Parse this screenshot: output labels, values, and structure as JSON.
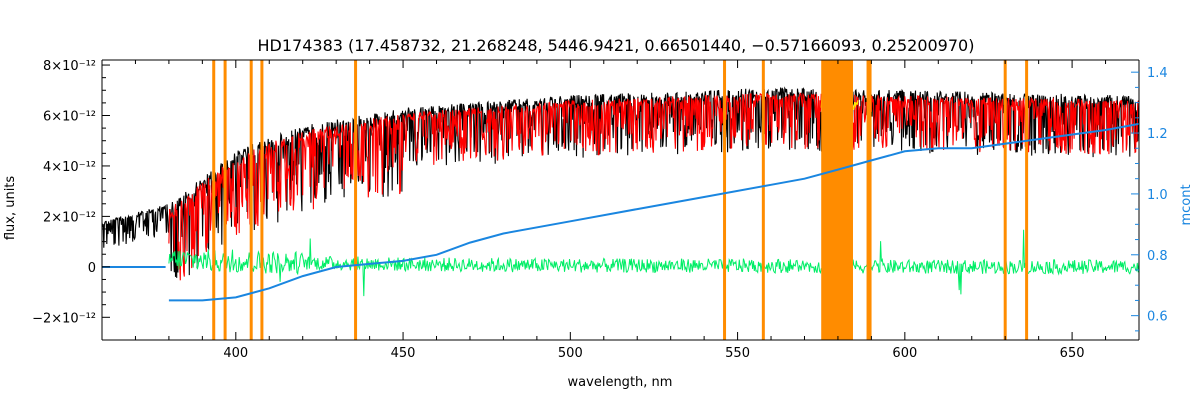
{
  "chart_data": {
    "type": "line",
    "title": "HD174383   (17.458732, 21.268248, 5446.9421, 0.66501440, −0.57166093, 0.25200970)",
    "xlabel": "wavelength, nm",
    "ylabel": "flux, units",
    "ylabel_right": "mcont",
    "xlim": [
      360,
      670
    ],
    "ylim": [
      -2.9e-12,
      8.2e-12
    ],
    "ylim_right": [
      0.52,
      1.44
    ],
    "x_ticks": [
      "400",
      "450",
      "500",
      "550",
      "600",
      "650"
    ],
    "y_ticks": [
      "8×10⁻¹²",
      "6×10⁻¹²",
      "4×10⁻¹²",
      "2×10⁻¹²",
      "0",
      "−2×10⁻¹²"
    ],
    "y_tick_values": [
      8e-12,
      6e-12,
      4e-12,
      2e-12,
      0,
      -2e-12
    ],
    "y_right_ticks": [
      "1.4",
      "1.2",
      "1.0",
      "0.8",
      "0.6"
    ],
    "y_right_tick_values": [
      1.4,
      1.2,
      1.0,
      0.8,
      0.6
    ],
    "x_tick_values": [
      400,
      450,
      500,
      550,
      600,
      650
    ],
    "series": [
      {
        "color": "#000000",
        "x": [
          360,
          380,
          400,
          420,
          450,
          480,
          500,
          540,
          560,
          600,
          630,
          670
        ],
        "values": [
          1.8e-12,
          2.5e-12,
          4.6e-12,
          5.6e-12,
          6.3e-12,
          6.6e-12,
          6.8e-12,
          7e-12,
          7.1e-12,
          7e-12,
          6.9e-12,
          6.8e-12
        ]
      },
      {
        "color": "#ff0000",
        "x": [
          380,
          400,
          420,
          450,
          480,
          500,
          540,
          560,
          600,
          630,
          670
        ],
        "values": [
          2.3e-12,
          4.4e-12,
          5.4e-12,
          6.1e-12,
          6.4e-12,
          6.6e-12,
          6.8e-12,
          6.9e-12,
          6.8e-12,
          6.7e-12,
          6.6e-12
        ]
      },
      {
        "color": "#00ee66",
        "x": [
          380,
          400,
          450,
          500,
          550,
          600,
          650,
          670
        ],
        "values": [
          3e-13,
          2e-13,
          1e-13,
          5e-14,
          5e-14,
          0.0,
          0.0,
          0.0
        ]
      },
      {
        "color": "#1a86e0",
        "axis": "right",
        "x": [
          360,
          379,
          380,
          390,
          400,
          410,
          420,
          430,
          440,
          450,
          460,
          470,
          480,
          500,
          520,
          540,
          560,
          570,
          580,
          590,
          600,
          610,
          620,
          640,
          660,
          670
        ],
        "values": [
          0.76,
          0.76,
          0.65,
          0.65,
          0.66,
          0.69,
          0.73,
          0.76,
          0.77,
          0.78,
          0.8,
          0.84,
          0.87,
          0.91,
          0.95,
          0.99,
          1.03,
          1.05,
          1.08,
          1.11,
          1.14,
          1.15,
          1.15,
          1.18,
          1.21,
          1.23
        ]
      }
    ],
    "vlines": [
      393.4,
      396.8,
      404.6,
      407.8,
      435.8,
      546.1,
      557.7,
      589.0,
      589.6,
      630.0,
      636.4
    ],
    "bands": [
      [
        575,
        584.5
      ]
    ],
    "yellow_range": [
      575,
      586
    ]
  }
}
